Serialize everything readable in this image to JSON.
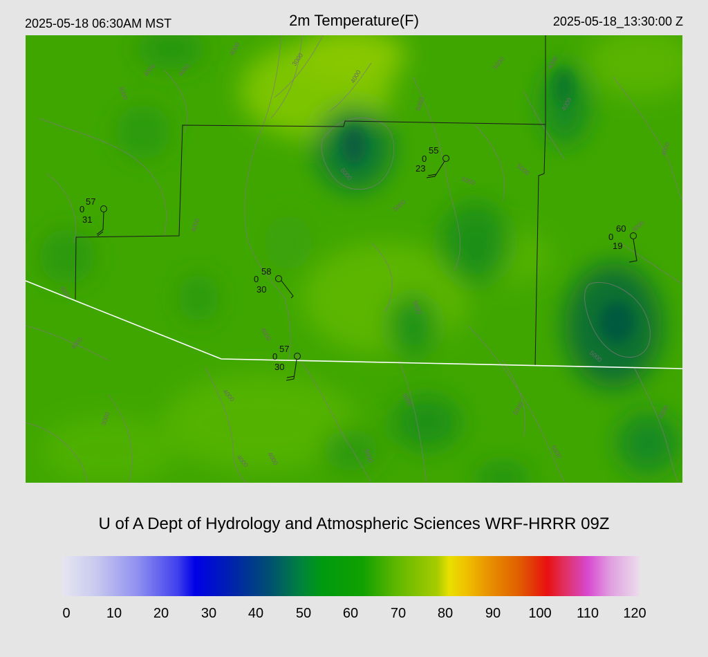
{
  "header": {
    "local_time": "2025-05-18 06:30AM MST",
    "title": "2m Temperature(F)",
    "utc_time": "2025-05-18_13:30:00 Z"
  },
  "footer_title": "U of A Dept of Hydrology and Atmospheric Sciences WRF-HRRR 09Z",
  "colorbar": {
    "ticks": [
      "0",
      "10",
      "20",
      "30",
      "40",
      "50",
      "60",
      "70",
      "80",
      "90",
      "100",
      "110",
      "120"
    ]
  },
  "stations": [
    {
      "temp": "57",
      "cloud": "0",
      "dewpoint": "31"
    },
    {
      "temp": "55",
      "cloud": "0",
      "dewpoint": "23"
    },
    {
      "temp": "60",
      "cloud": "0",
      "dewpoint": "19"
    },
    {
      "temp": "58",
      "cloud": "0",
      "dewpoint": "30"
    },
    {
      "temp": "57",
      "cloud": "0",
      "dewpoint": "30"
    }
  ],
  "contour_labels": [
    "3000",
    "4000",
    "5000",
    "6000"
  ],
  "colors": {
    "background": "#e5e5e5",
    "map_base": "#3fa800",
    "state_border": "#ffffff",
    "county_border": "#1a1a1a",
    "contour": "#7a7a7a"
  }
}
